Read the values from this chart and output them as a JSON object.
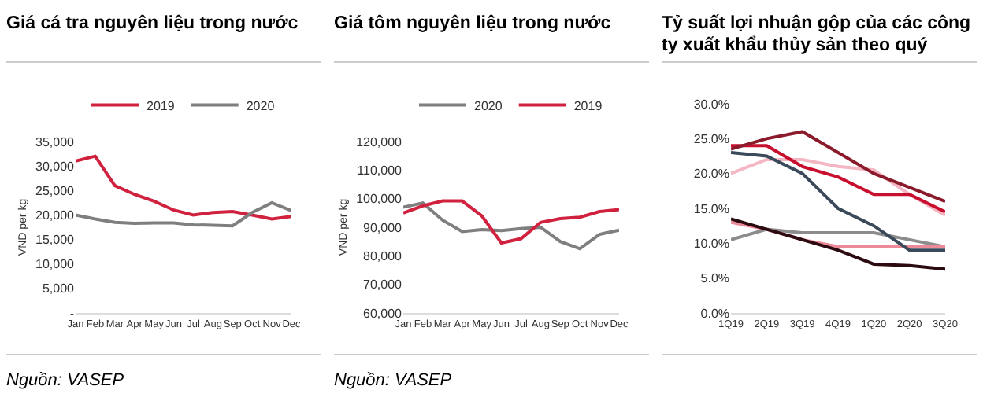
{
  "chart_data": [
    {
      "type": "line",
      "title": "Giá cá tra nguyên liệu trong nước",
      "ylabel": "VND per kg",
      "categories": [
        "Jan",
        "Feb",
        "Mar",
        "Apr",
        "May",
        "Jun",
        "Jul",
        "Aug",
        "Sep",
        "Oct",
        "Nov",
        "Dec"
      ],
      "series": [
        {
          "name": "2019",
          "color": "#d0223e",
          "values": [
            31000,
            32000,
            26000,
            24200,
            22800,
            21000,
            20000,
            20500,
            20700,
            20000,
            19200,
            19700
          ]
        },
        {
          "name": "2020",
          "color": "#7f7f7f",
          "values": [
            20000,
            19200,
            18500,
            18300,
            18400,
            18400,
            18000,
            17900,
            17800,
            20500,
            22500,
            20900
          ]
        }
      ],
      "ylim": [
        0,
        35000
      ],
      "yticks": [
        {
          "value": 0,
          "label": "-"
        },
        {
          "value": 5000,
          "label": "5,000"
        },
        {
          "value": 10000,
          "label": "10,000"
        },
        {
          "value": 15000,
          "label": "15,000"
        },
        {
          "value": 20000,
          "label": "20,000"
        },
        {
          "value": 25000,
          "label": "25,000"
        },
        {
          "value": 30000,
          "label": "30,000"
        },
        {
          "value": 35000,
          "label": "35,000"
        }
      ],
      "legend": "top",
      "annotations": [
        "Nguồn: VASEP"
      ]
    },
    {
      "type": "line",
      "title": "Giá tôm nguyên liệu trong nước",
      "ylabel": "VND per kg",
      "categories": [
        "Jan",
        "Feb",
        "Mar",
        "Apr",
        "May",
        "Jun",
        "Jul",
        "Aug",
        "Sep",
        "Oct",
        "Nov",
        "Dec"
      ],
      "series": [
        {
          "name": "2020",
          "color": "#7f7f7f",
          "values": [
            97000,
            98500,
            92500,
            88500,
            89200,
            88800,
            89500,
            90000,
            85000,
            82500,
            87500,
            89000
          ]
        },
        {
          "name": "2019",
          "color": "#d0223e",
          "values": [
            95000,
            97500,
            99200,
            99200,
            94000,
            84500,
            86000,
            91700,
            93000,
            93500,
            95500,
            96200
          ]
        }
      ],
      "ylim": [
        60000,
        120000
      ],
      "yticks": [
        {
          "value": 60000,
          "label": "60,000"
        },
        {
          "value": 70000,
          "label": "70,000"
        },
        {
          "value": 80000,
          "label": "80,000"
        },
        {
          "value": 90000,
          "label": "90,000"
        },
        {
          "value": 100000,
          "label": "100,000"
        },
        {
          "value": 110000,
          "label": "110,000"
        },
        {
          "value": 120000,
          "label": "120,000"
        }
      ],
      "legend": "top",
      "annotations": [
        "Nguồn: VASEP"
      ]
    },
    {
      "type": "line",
      "title": "Tỷ suất lợi nhuận gộp của các công ty xuất khẩu thủy sản theo quý",
      "categories": [
        "1Q19",
        "2Q19",
        "3Q19",
        "4Q19",
        "1Q20",
        "2Q20",
        "3Q20"
      ],
      "series": [
        {
          "color": "#f4b6c2",
          "values": [
            20,
            22,
            22,
            21,
            20.5,
            17,
            14
          ]
        },
        {
          "color": "#8c8c8c",
          "values": [
            10.5,
            12,
            11.5,
            11.5,
            11.5,
            10.5,
            9.5
          ]
        },
        {
          "color": "#ee8a97",
          "values": [
            13,
            12,
            10.5,
            9.5,
            9.5,
            9.5,
            9.5
          ]
        },
        {
          "color": "#c8102e",
          "values": [
            24,
            24,
            21,
            19.5,
            17,
            17,
            14.5
          ]
        },
        {
          "color": "#8b1a2b",
          "values": [
            23.5,
            25,
            26,
            23,
            20,
            18,
            16
          ]
        },
        {
          "color": "#2b0a10",
          "values": [
            13.5,
            12,
            10.5,
            9,
            7,
            6.8,
            6.3
          ]
        },
        {
          "color": "#3b4a5a",
          "values": [
            23,
            22.5,
            20,
            15,
            12.5,
            9,
            9
          ]
        }
      ],
      "ylim": [
        0,
        30
      ],
      "yticks": [
        {
          "value": 0,
          "label": "0.0%"
        },
        {
          "value": 5,
          "label": "5.0%"
        },
        {
          "value": 10,
          "label": "10.0%"
        },
        {
          "value": 15,
          "label": "15.0%"
        },
        {
          "value": 20,
          "label": "20.0%"
        },
        {
          "value": 25,
          "label": "25.0%"
        },
        {
          "value": 30,
          "label": "30.0%"
        }
      ]
    }
  ]
}
